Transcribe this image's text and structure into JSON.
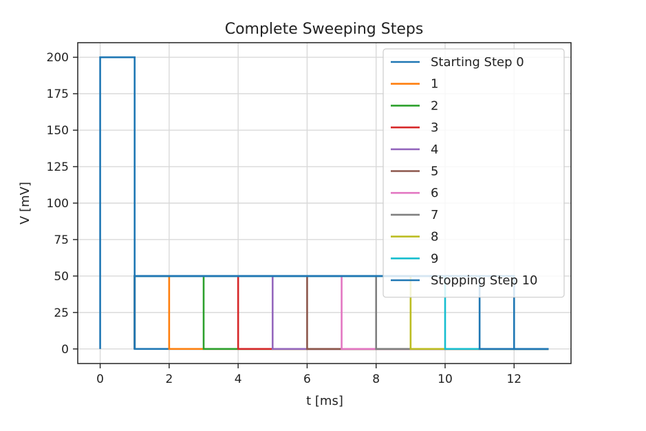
{
  "chart_data": {
    "type": "line",
    "title": "Complete Sweeping Steps",
    "xlabel": "t  [ms]",
    "ylabel": "V  [mV]",
    "xlim": [
      -0.65,
      13.65
    ],
    "ylim": [
      -10,
      210
    ],
    "xticks": [
      0,
      2,
      4,
      6,
      8,
      10,
      12
    ],
    "yticks": [
      0,
      25,
      50,
      75,
      100,
      125,
      150,
      175,
      200
    ],
    "grid": true,
    "legend_position": "top-right",
    "series": [
      {
        "name": "Starting Step 0",
        "color": "#1f77b4",
        "x": [
          0,
          0,
          1,
          1,
          13
        ],
        "y": [
          0,
          200,
          200,
          0,
          0
        ]
      },
      {
        "name": "1",
        "color": "#ff7f0e",
        "x": [
          1,
          1,
          2,
          2,
          13
        ],
        "y": [
          0,
          50,
          50,
          0,
          0
        ]
      },
      {
        "name": "2",
        "color": "#2ca02c",
        "x": [
          1,
          1,
          3,
          3,
          13
        ],
        "y": [
          0,
          50,
          50,
          0,
          0
        ]
      },
      {
        "name": "3",
        "color": "#d62728",
        "x": [
          1,
          1,
          4,
          4,
          13
        ],
        "y": [
          0,
          50,
          50,
          0,
          0
        ]
      },
      {
        "name": "4",
        "color": "#9467bd",
        "x": [
          1,
          1,
          5,
          5,
          13
        ],
        "y": [
          0,
          50,
          50,
          0,
          0
        ]
      },
      {
        "name": "5",
        "color": "#8c564b",
        "x": [
          1,
          1,
          6,
          6,
          13
        ],
        "y": [
          0,
          50,
          50,
          0,
          0
        ]
      },
      {
        "name": "6",
        "color": "#e377c2",
        "x": [
          1,
          1,
          7,
          7,
          13
        ],
        "y": [
          0,
          50,
          50,
          0,
          0
        ]
      },
      {
        "name": "7",
        "color": "#7f7f7f",
        "x": [
          1,
          1,
          8,
          8,
          13
        ],
        "y": [
          0,
          50,
          50,
          0,
          0
        ]
      },
      {
        "name": "8",
        "color": "#bcbd22",
        "x": [
          1,
          1,
          9,
          9,
          13
        ],
        "y": [
          0,
          50,
          50,
          0,
          0
        ]
      },
      {
        "name": "9",
        "color": "#17becf",
        "x": [
          1,
          1,
          10,
          10,
          13
        ],
        "y": [
          0,
          50,
          50,
          0,
          0
        ]
      },
      {
        "name": "Stopping Step 10",
        "color": "#1f77b4",
        "x": [
          1,
          1,
          11,
          11,
          13
        ],
        "y": [
          0,
          50,
          50,
          0,
          0
        ]
      },
      {
        "name": "",
        "color": "#1f77b4",
        "x": [
          1,
          1,
          12,
          12,
          13
        ],
        "y": [
          0,
          50,
          50,
          0,
          0
        ]
      }
    ]
  }
}
